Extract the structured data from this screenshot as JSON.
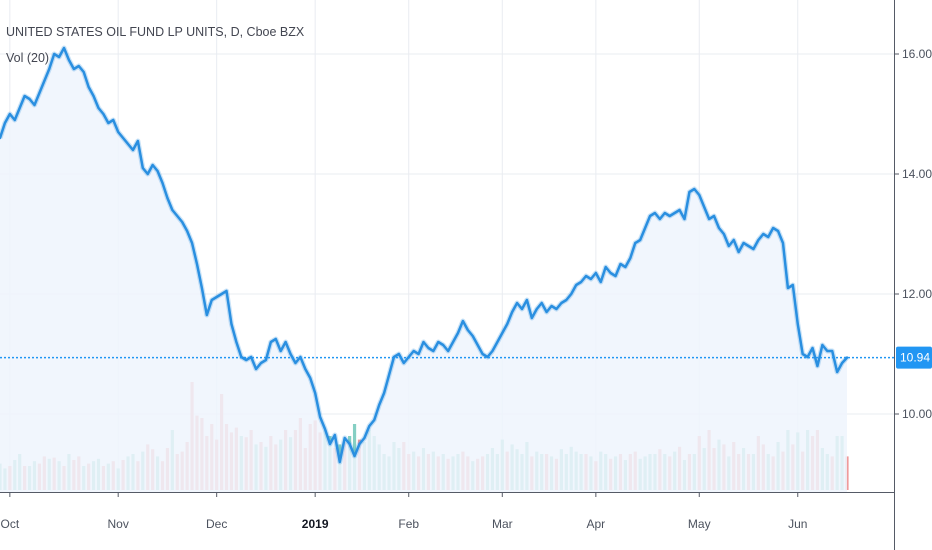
{
  "header": {
    "title": "UNITED STATES OIL FUND LP UNITS, D, Cboe BZX",
    "volume_label": "Vol (20)"
  },
  "colors": {
    "line": "#2a8fe0",
    "area": "#eef5fd",
    "up_volume": "#85cfc3",
    "down_volume": "#ef9a9a",
    "grid": "#e9ecf1",
    "price_tag": "#2196f3",
    "axis": "#555a66"
  },
  "chart_data": {
    "type": "line",
    "title": "UNITED STATES OIL FUND LP UNITS, D, Cboe BZX",
    "xlabel": "",
    "ylabel": "",
    "x_tick_labels": [
      "Oct",
      "Nov",
      "Dec",
      "2019",
      "Feb",
      "Mar",
      "Apr",
      "May",
      "Jun"
    ],
    "x_tick_index": [
      2,
      24,
      44,
      64,
      83,
      102,
      121,
      142,
      162
    ],
    "y_ticks": [
      10.0,
      12.0,
      14.0,
      16.0
    ],
    "y_tick_labels": [
      "10.00",
      "12.00",
      "14.00",
      "16.00"
    ],
    "ylim": [
      8.7,
      16.9
    ],
    "last_price": 10.94,
    "last_price_label": "10.94",
    "grid": true,
    "series": [
      {
        "values": [
          14.6,
          14.85,
          15.0,
          14.9,
          15.1,
          15.3,
          15.25,
          15.15,
          15.35,
          15.55,
          15.75,
          16.0,
          15.95,
          16.1,
          15.9,
          15.75,
          15.8,
          15.7,
          15.45,
          15.3,
          15.1,
          15.0,
          14.85,
          14.9,
          14.7,
          14.6,
          14.5,
          14.4,
          14.55,
          14.1,
          14.0,
          14.15,
          14.05,
          13.85,
          13.6,
          13.4,
          13.3,
          13.2,
          13.05,
          12.85,
          12.5,
          12.1,
          11.65,
          11.9,
          11.95,
          12.0,
          12.05,
          11.5,
          11.2,
          10.95,
          10.9,
          10.95,
          10.75,
          10.85,
          10.9,
          11.2,
          11.25,
          11.05,
          11.2,
          11.0,
          10.85,
          10.95,
          10.75,
          10.6,
          10.35,
          9.95,
          9.75,
          9.5,
          9.65,
          9.2,
          9.6,
          9.5,
          9.3,
          9.5,
          9.6,
          9.8,
          9.9,
          10.15,
          10.35,
          10.65,
          10.95,
          11.0,
          10.85,
          10.95,
          11.05,
          11.0,
          11.2,
          11.1,
          11.05,
          11.2,
          11.15,
          11.05,
          11.2,
          11.35,
          11.55,
          11.4,
          11.3,
          11.15,
          11.0,
          10.95,
          11.05,
          11.2,
          11.35,
          11.5,
          11.7,
          11.85,
          11.75,
          11.9,
          11.6,
          11.75,
          11.85,
          11.7,
          11.8,
          11.75,
          11.85,
          11.9,
          12.0,
          12.15,
          12.2,
          12.3,
          12.25,
          12.35,
          12.2,
          12.45,
          12.35,
          12.3,
          12.5,
          12.45,
          12.6,
          12.85,
          12.9,
          13.1,
          13.3,
          13.35,
          13.25,
          13.35,
          13.3,
          13.35,
          13.4,
          13.25,
          13.7,
          13.75,
          13.65,
          13.45,
          13.25,
          13.3,
          13.1,
          13.0,
          12.8,
          12.9,
          12.7,
          12.85,
          12.8,
          12.75,
          12.9,
          13.0,
          12.95,
          13.1,
          13.05,
          12.85,
          12.1,
          12.15,
          11.5,
          11.0,
          10.95,
          11.1,
          10.8,
          11.15,
          11.05,
          11.05,
          10.7,
          10.85,
          10.94
        ]
      }
    ],
    "volume": {
      "label": "Vol (20)",
      "values": [
        0.22,
        0.18,
        0.2,
        0.25,
        0.3,
        0.2,
        0.2,
        0.24,
        0.22,
        0.28,
        0.26,
        0.27,
        0.24,
        0.2,
        0.3,
        0.25,
        0.28,
        0.2,
        0.22,
        0.24,
        0.26,
        0.2,
        0.22,
        0.24,
        0.18,
        0.25,
        0.28,
        0.3,
        0.24,
        0.32,
        0.38,
        0.34,
        0.28,
        0.24,
        0.35,
        0.5,
        0.3,
        0.32,
        0.4,
        0.9,
        0.62,
        0.6,
        0.45,
        0.55,
        0.42,
        0.8,
        0.55,
        0.48,
        0.52,
        0.45,
        0.44,
        0.5,
        0.38,
        0.4,
        0.36,
        0.45,
        0.38,
        0.42,
        0.5,
        0.44,
        0.5,
        0.6,
        0.35,
        0.55,
        0.58,
        0.48,
        0.5,
        0.45,
        0.35,
        0.38,
        0.4,
        0.45,
        0.55,
        0.42,
        0.4,
        0.5,
        0.45,
        0.38,
        0.3,
        0.28,
        0.4,
        0.35,
        0.4,
        0.3,
        0.32,
        0.28,
        0.35,
        0.3,
        0.32,
        0.28,
        0.3,
        0.26,
        0.28,
        0.3,
        0.32,
        0.28,
        0.24,
        0.26,
        0.28,
        0.3,
        0.35,
        0.3,
        0.42,
        0.32,
        0.38,
        0.34,
        0.3,
        0.4,
        0.28,
        0.32,
        0.3,
        0.3,
        0.28,
        0.26,
        0.34,
        0.3,
        0.36,
        0.32,
        0.3,
        0.3,
        0.28,
        0.24,
        0.32,
        0.3,
        0.26,
        0.28,
        0.3,
        0.25,
        0.3,
        0.32,
        0.26,
        0.28,
        0.3,
        0.3,
        0.34,
        0.3,
        0.28,
        0.32,
        0.36,
        0.25,
        0.3,
        0.3,
        0.45,
        0.35,
        0.5,
        0.35,
        0.42,
        0.38,
        0.28,
        0.4,
        0.3,
        0.35,
        0.3,
        0.3,
        0.45,
        0.38,
        0.3,
        0.28,
        0.4,
        0.32,
        0.5,
        0.38,
        0.48,
        0.32,
        0.5,
        0.45,
        0.5,
        0.35,
        0.3,
        0.28,
        0.45,
        0.45,
        0.28
      ],
      "up": [
        true,
        true,
        false,
        true,
        true,
        false,
        true,
        true,
        false,
        false,
        true,
        false,
        true,
        false,
        true,
        false,
        false,
        true,
        false,
        true,
        true,
        false,
        true,
        false,
        true,
        false,
        true,
        true,
        false,
        true,
        false,
        false,
        true,
        false,
        false,
        true,
        false,
        false,
        false,
        false,
        false,
        false,
        false,
        false,
        false,
        false,
        false,
        false,
        false,
        true,
        false,
        false,
        true,
        false,
        true,
        false,
        false,
        true,
        false,
        true,
        false,
        false,
        false,
        false,
        false,
        false,
        true,
        true,
        false,
        true,
        false,
        true,
        true,
        false,
        true,
        true,
        true,
        true,
        true,
        true,
        true,
        true,
        false,
        false,
        true,
        false,
        true,
        false,
        true,
        false,
        true,
        false,
        true,
        true,
        false,
        false,
        true,
        false,
        false,
        true,
        true,
        true,
        true,
        false,
        true,
        true,
        true,
        true,
        false,
        true,
        true,
        false,
        true,
        false,
        true,
        true,
        true,
        true,
        true,
        false,
        true,
        false,
        true,
        true,
        false,
        true,
        false,
        true,
        false,
        false,
        true,
        true,
        true,
        true,
        false,
        true,
        false,
        true,
        false,
        true,
        false,
        true,
        false,
        true,
        false,
        false,
        true,
        false,
        true,
        false,
        false,
        true,
        false,
        true,
        false,
        false,
        true,
        false,
        true,
        false,
        true,
        false,
        true,
        false,
        true,
        false,
        false,
        true,
        true,
        false,
        true,
        true,
        false,
        false,
        true
      ]
    }
  }
}
